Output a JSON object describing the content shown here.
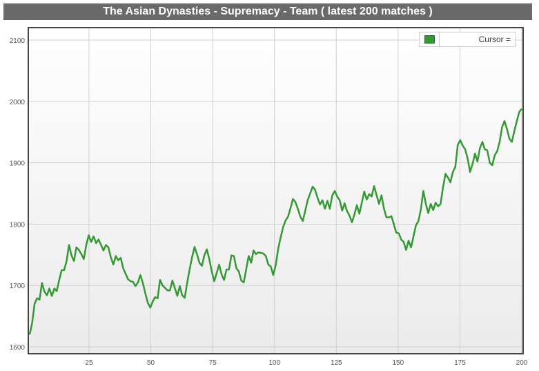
{
  "chart_data": {
    "type": "line",
    "title": "The Asian Dynasties - Supremacy - Team ( latest 200 matches )",
    "xlabel": "",
    "ylabel": "",
    "xlim": [
      1,
      200
    ],
    "ylim": [
      1590,
      2120
    ],
    "xticks": [
      25,
      50,
      75,
      100,
      125,
      150,
      175,
      200
    ],
    "yticks": [
      1600,
      1700,
      1800,
      1900,
      2000,
      2100
    ],
    "grid": true,
    "legend": {
      "position": "top-right",
      "label": "Cursor ="
    },
    "series_color": "#339933",
    "values": [
      1620,
      1639,
      1670,
      1679,
      1677,
      1704,
      1690,
      1684,
      1695,
      1683,
      1695,
      1691,
      1709,
      1725,
      1725,
      1740,
      1766,
      1749,
      1740,
      1762,
      1758,
      1751,
      1743,
      1766,
      1782,
      1771,
      1780,
      1769,
      1775,
      1766,
      1757,
      1766,
      1762,
      1746,
      1734,
      1748,
      1741,
      1745,
      1728,
      1719,
      1710,
      1707,
      1706,
      1699,
      1705,
      1717,
      1704,
      1687,
      1672,
      1664,
      1674,
      1681,
      1679,
      1709,
      1700,
      1696,
      1692,
      1692,
      1708,
      1696,
      1683,
      1699,
      1684,
      1680,
      1704,
      1726,
      1746,
      1763,
      1751,
      1737,
      1732,
      1749,
      1759,
      1743,
      1723,
      1707,
      1720,
      1734,
      1718,
      1709,
      1726,
      1726,
      1749,
      1748,
      1728,
      1723,
      1708,
      1705,
      1726,
      1748,
      1737,
      1757,
      1751,
      1754,
      1753,
      1752,
      1748,
      1734,
      1731,
      1717,
      1733,
      1760,
      1778,
      1795,
      1806,
      1812,
      1826,
      1841,
      1836,
      1825,
      1812,
      1805,
      1822,
      1839,
      1850,
      1861,
      1856,
      1843,
      1832,
      1839,
      1825,
      1838,
      1825,
      1847,
      1854,
      1845,
      1839,
      1822,
      1834,
      1821,
      1814,
      1803,
      1816,
      1831,
      1817,
      1835,
      1853,
      1840,
      1849,
      1845,
      1862,
      1847,
      1833,
      1847,
      1825,
      1811,
      1811,
      1813,
      1800,
      1786,
      1785,
      1775,
      1771,
      1758,
      1773,
      1762,
      1780,
      1798,
      1805,
      1824,
      1854,
      1833,
      1818,
      1833,
      1823,
      1835,
      1829,
      1833,
      1860,
      1882,
      1876,
      1868,
      1885,
      1893,
      1929,
      1937,
      1928,
      1922,
      1907,
      1885,
      1898,
      1915,
      1902,
      1924,
      1934,
      1922,
      1920,
      1900,
      1896,
      1912,
      1919,
      1934,
      1958,
      1968,
      1955,
      1939,
      1934,
      1952,
      1968,
      1983,
      1988
    ]
  }
}
